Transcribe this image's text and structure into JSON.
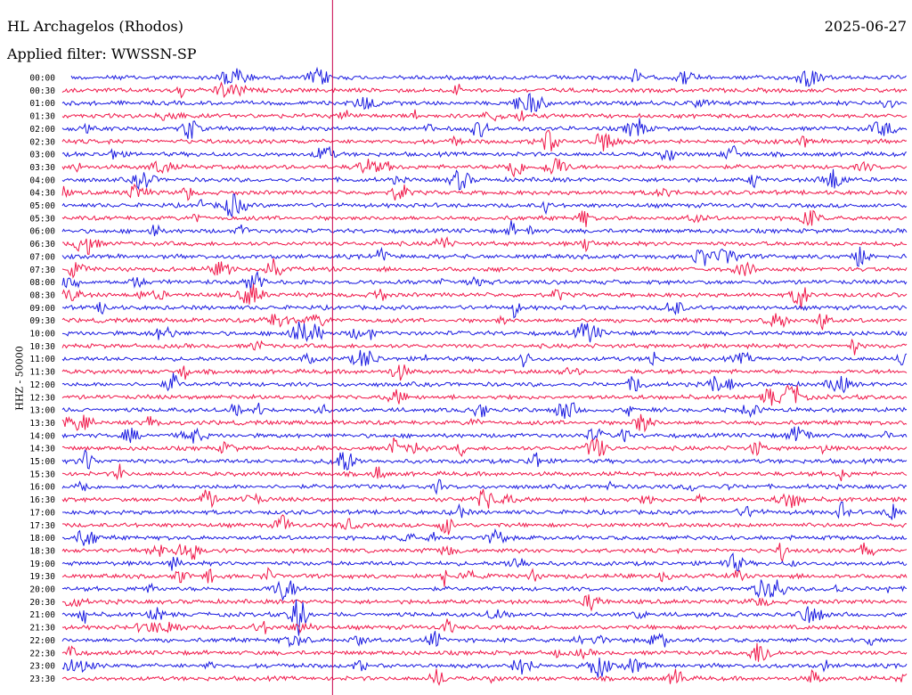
{
  "header": {
    "station": "HL Archagelos (Rhodos)",
    "filter": "Applied filter: WWSSN-SP",
    "date": "2025-06-27"
  },
  "axis": {
    "ylabel": "HHZ - 50000"
  },
  "colors": {
    "trace_a": "#1a1ae0",
    "trace_b": "#f0184a",
    "marker": "#c8004a"
  },
  "chart_data": {
    "type": "line",
    "title": "HL Archagelos (Rhodos)",
    "subtitle": "Applied filter: WWSSN-SP",
    "ylabel": "HHZ - 50000",
    "xlabel": "",
    "rows": [
      "00:00",
      "00:30",
      "01:00",
      "01:30",
      "02:00",
      "02:30",
      "03:00",
      "03:30",
      "04:00",
      "04:30",
      "05:00",
      "05:30",
      "06:00",
      "06:30",
      "07:00",
      "07:30",
      "08:00",
      "08:30",
      "09:00",
      "09:30",
      "10:00",
      "10:30",
      "11:00",
      "11:30",
      "12:00",
      "12:30",
      "13:00",
      "13:30",
      "14:00",
      "14:30",
      "15:00",
      "15:30",
      "16:00",
      "16:30",
      "17:00",
      "17:30",
      "18:00",
      "18:30",
      "19:00",
      "19:30",
      "20:00",
      "20:30",
      "21:00",
      "21:30",
      "22:00",
      "22:30",
      "23:00",
      "23:30"
    ],
    "x_range_minutes": [
      0,
      30
    ],
    "grid": false,
    "legend": "none",
    "marker_minute": 9.6
  }
}
